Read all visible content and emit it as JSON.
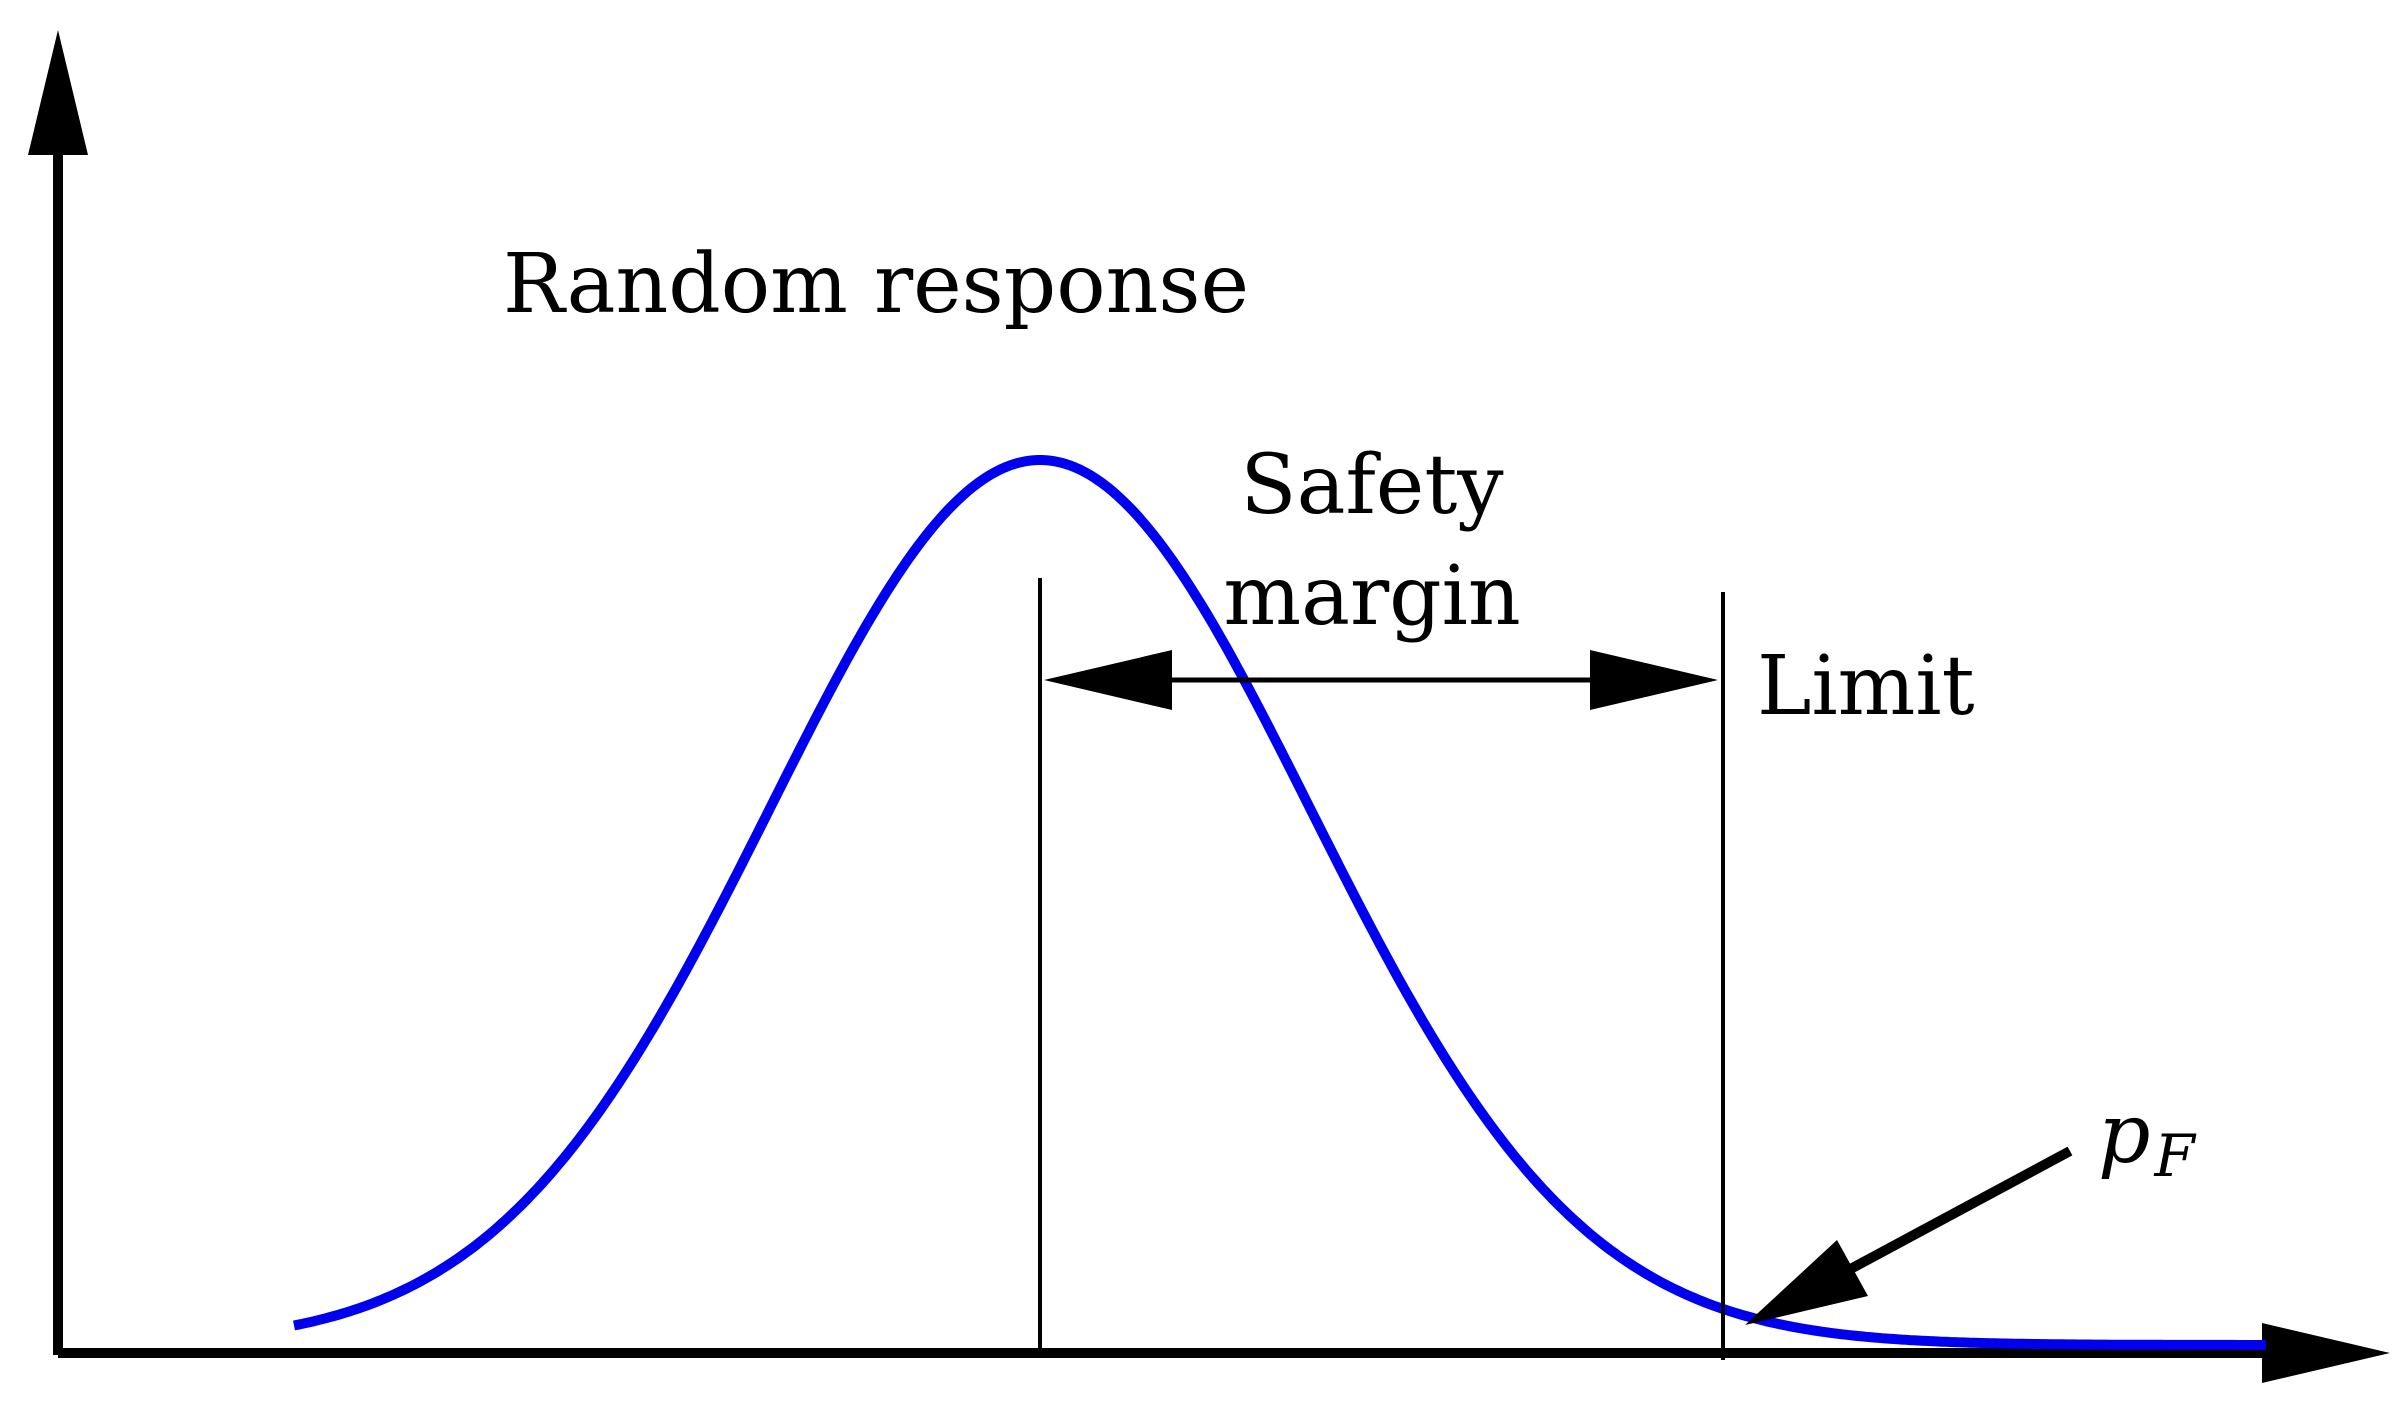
{
  "labels": {
    "random_response": "Random response",
    "safety_line1": "Safety",
    "safety_line2": "margin",
    "limit": "Limit",
    "pf_main": "p",
    "pf_sub": "F"
  },
  "colors": {
    "curve": "#0000ee",
    "ink": "#000000",
    "background": "#ffffff"
  }
}
